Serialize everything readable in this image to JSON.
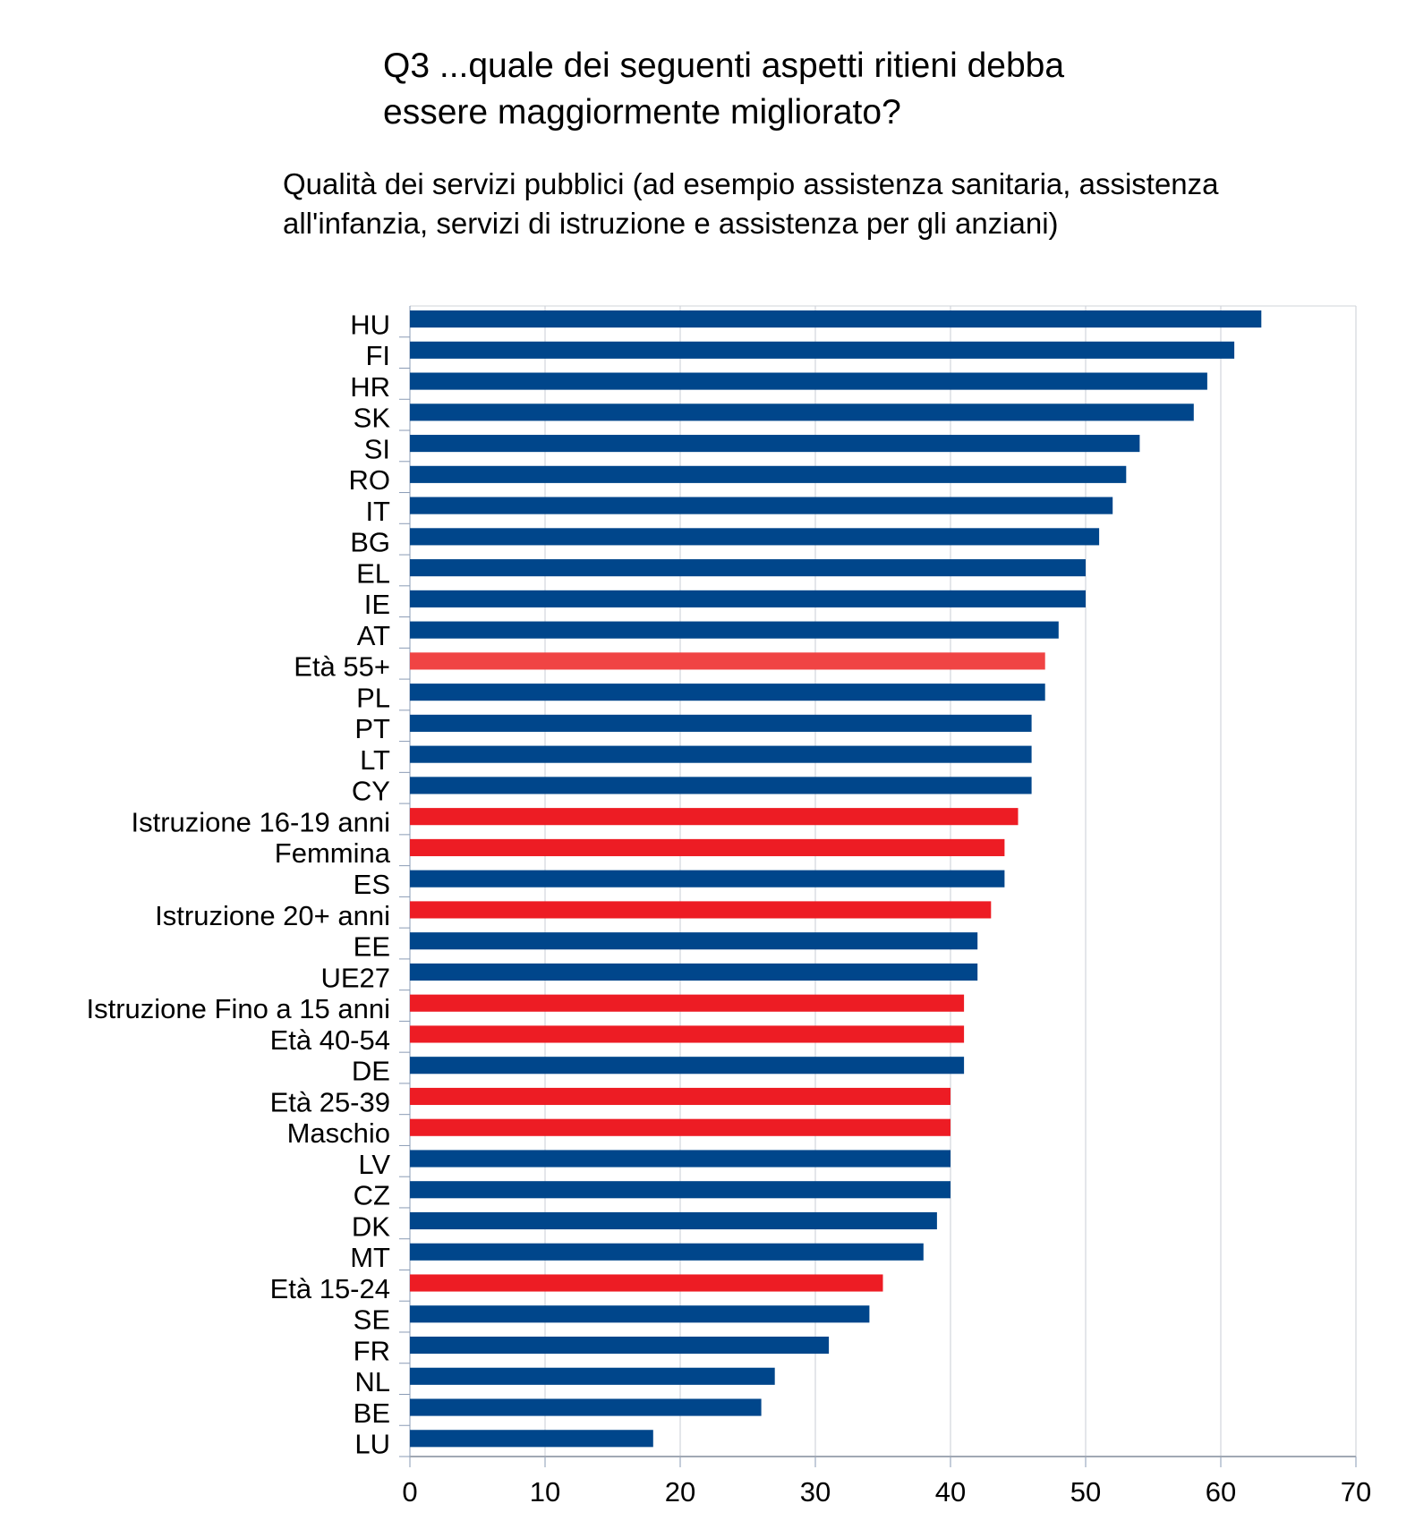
{
  "chart_data": {
    "type": "bar",
    "orientation": "horizontal",
    "title": "Q3 ...quale dei seguenti aspetti ritieni debba essere maggiormente migliorato?",
    "title_lines": [
      "Q3 ...quale dei seguenti aspetti ritieni debba",
      "essere maggiormente migliorato?"
    ],
    "subtitle": "Qualità dei servizi pubblici (ad esempio assistenza sanitaria, assistenza all'infanzia, servizi di istruzione e assistenza per gli anziani)",
    "subtitle_lines": [
      "Qualità dei servizi pubblici (ad esempio assistenza sanitaria, assistenza",
      "all'infanzia, servizi di istruzione e assistenza per gli anziani)"
    ],
    "xlabel": "",
    "ylabel": "",
    "xlim": [
      0,
      70
    ],
    "xticks": [
      0,
      10,
      20,
      30,
      40,
      50,
      60,
      70
    ],
    "grid": "vertical",
    "legend": "none",
    "colors": {
      "country": "#00468b",
      "segment": "#ed1c24",
      "highlight": "#f04444"
    },
    "categories": [
      "HU",
      "FI",
      "HR",
      "SK",
      "SI",
      "RO",
      "IT",
      "BG",
      "EL",
      "IE",
      "AT",
      "Età 55+",
      "PL",
      "PT",
      "LT",
      "CY",
      "Istruzione 16-19 anni",
      "Femmina",
      "ES",
      "Istruzione 20+ anni",
      "EE",
      "UE27",
      "Istruzione Fino a 15 anni",
      "Età 40-54",
      "DE",
      "Età 25-39",
      "Maschio",
      "LV",
      "CZ",
      "DK",
      "MT",
      "Età 15-24",
      "SE",
      "FR",
      "NL",
      "BE",
      "LU"
    ],
    "values": [
      63,
      61,
      59,
      58,
      54,
      53,
      52,
      51,
      50,
      50,
      48,
      47,
      47,
      46,
      46,
      46,
      45,
      44,
      44,
      43,
      42,
      42,
      41,
      41,
      41,
      40,
      40,
      40,
      40,
      39,
      38,
      35,
      34,
      31,
      27,
      26,
      18
    ],
    "bar_types": [
      "country",
      "country",
      "country",
      "country",
      "country",
      "country",
      "country",
      "country",
      "country",
      "country",
      "country",
      "highlight",
      "country",
      "country",
      "country",
      "country",
      "segment",
      "segment",
      "country",
      "segment",
      "country",
      "country",
      "segment",
      "segment",
      "country",
      "segment",
      "segment",
      "country",
      "country",
      "country",
      "country",
      "segment",
      "country",
      "country",
      "country",
      "country",
      "country"
    ]
  }
}
